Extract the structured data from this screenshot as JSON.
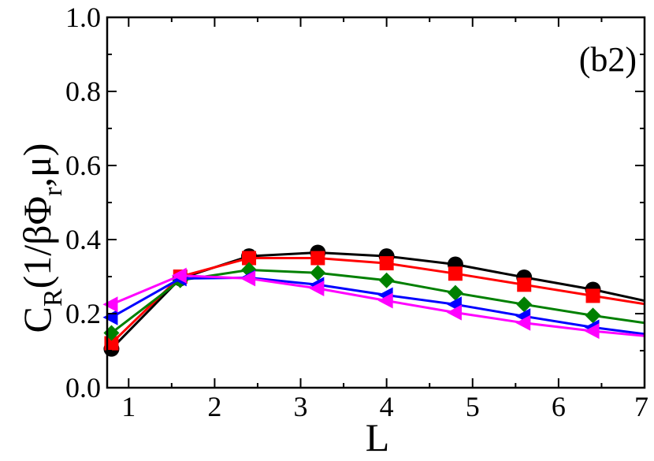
{
  "chart_data": {
    "type": "line",
    "panel_label": "(b2)",
    "xlabel": "L",
    "ylabel": {
      "main": "C",
      "sub1": "R",
      "mid": "(1/βΦ",
      "sub2": "r",
      "tail": ",μ)"
    },
    "xlim": [
      0.75,
      7
    ],
    "ylim": [
      0,
      1.0
    ],
    "xticks": [
      1,
      2,
      3,
      4,
      5,
      6,
      7
    ],
    "xtick_labels": [
      "1",
      "2",
      "3",
      "4",
      "5",
      "6",
      "7"
    ],
    "yticks": [
      0.0,
      0.2,
      0.4,
      0.6,
      0.8,
      1.0
    ],
    "ytick_labels": [
      "0.0",
      "0.2",
      "0.4",
      "0.6",
      "0.8",
      "1.0"
    ],
    "grid": false,
    "series": [
      {
        "color": "#000000",
        "marker": "circle",
        "x": [
          0.8,
          1.6,
          2.4,
          3.2,
          4.0,
          4.8,
          5.6,
          6.4,
          7.0
        ],
        "y": [
          0.105,
          0.295,
          0.355,
          0.365,
          0.355,
          0.333,
          0.298,
          0.265,
          0.235
        ],
        "marker_count": 8
      },
      {
        "color": "#ff0000",
        "marker": "square",
        "x": [
          0.8,
          1.6,
          2.4,
          3.2,
          4.0,
          4.8,
          5.6,
          6.4,
          7.0
        ],
        "y": [
          0.12,
          0.3,
          0.35,
          0.35,
          0.336,
          0.308,
          0.278,
          0.248,
          0.226
        ],
        "marker_count": 8
      },
      {
        "color": "#008000",
        "marker": "diamond",
        "x": [
          0.8,
          1.6,
          2.4,
          3.2,
          4.0,
          4.8,
          5.6,
          6.4,
          7.0
        ],
        "y": [
          0.148,
          0.29,
          0.318,
          0.31,
          0.29,
          0.256,
          0.225,
          0.195,
          0.175
        ],
        "marker_count": 8
      },
      {
        "color": "#0000ff",
        "marker": "triangle-left",
        "x": [
          0.8,
          1.6,
          2.4,
          3.2,
          4.0,
          4.8,
          5.6,
          6.4,
          7.0
        ],
        "y": [
          0.19,
          0.295,
          0.297,
          0.278,
          0.25,
          0.225,
          0.193,
          0.163,
          0.145
        ],
        "marker_count": 8
      },
      {
        "color": "#ff00ff",
        "marker": "triangle-left",
        "x": [
          0.8,
          1.6,
          2.4,
          3.2,
          4.0,
          4.8,
          5.6,
          6.4,
          7.0
        ],
        "y": [
          0.225,
          0.303,
          0.295,
          0.268,
          0.235,
          0.203,
          0.175,
          0.153,
          0.14
        ],
        "marker_count": 8
      }
    ]
  }
}
